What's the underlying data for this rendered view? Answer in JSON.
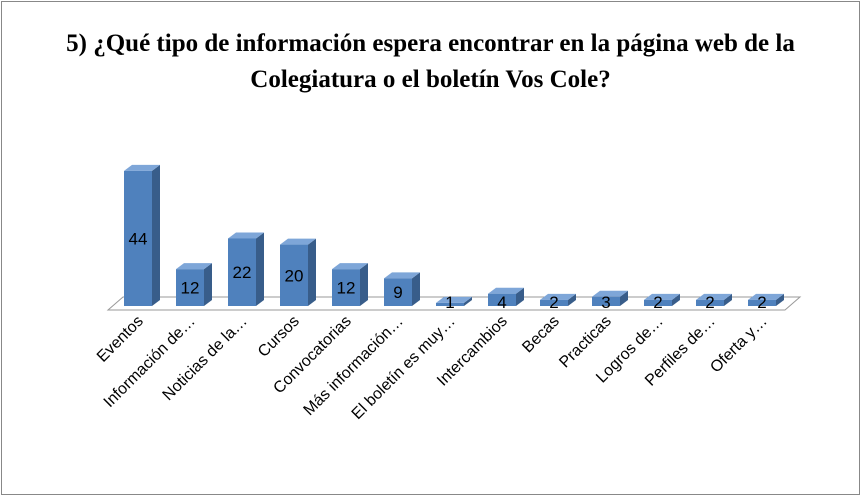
{
  "chart_data": {
    "type": "bar3d",
    "title": "5) ¿Qué tipo de información espera encontrar en la página web de la Colegiatura o el boletín Vos Cole?",
    "categories": [
      "Eventos",
      "Información de…",
      "Noticias de la…",
      "Cursos",
      "Convocatorias",
      "Más información…",
      "El boletín es muy…",
      "Intercambios",
      "Becas",
      "Practicas",
      "Logros de…",
      "Perfiles de…",
      "Oferta y…"
    ],
    "values": [
      44,
      12,
      22,
      20,
      12,
      9,
      1,
      4,
      2,
      3,
      2,
      2,
      2
    ],
    "color": "#4f81bd"
  }
}
